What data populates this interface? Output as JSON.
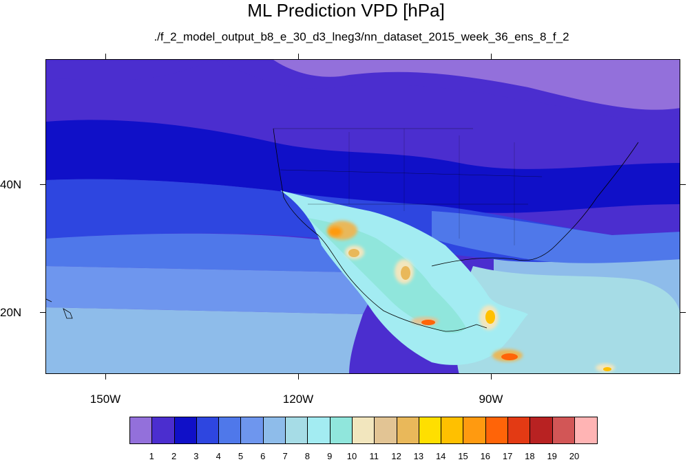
{
  "title": "ML Prediction VPD [hPa]",
  "subtitle": "./f_2_model_output_b8_e_30_d3_lneg3/nn_dataset_2015_week_36_ens_8_f_2",
  "map": {
    "lon_labels": [
      "150W",
      "120W",
      "90W"
    ],
    "lat_labels": [
      "40N",
      "20N"
    ],
    "extent": {
      "lon_min": -160,
      "lon_max": -60,
      "lat_min": 10,
      "lat_max": 60
    }
  },
  "colorbar": {
    "levels": [
      "1",
      "2",
      "3",
      "4",
      "5",
      "6",
      "7",
      "8",
      "9",
      "10",
      "11",
      "12",
      "13",
      "14",
      "15",
      "16",
      "17",
      "18",
      "19",
      "20"
    ],
    "colors": [
      "#9370db",
      "#4b2ecf",
      "#1010c8",
      "#2e46e0",
      "#4f78ea",
      "#6e96ee",
      "#8ebcea",
      "#a6dce6",
      "#a3ecf2",
      "#90e6dc",
      "#f2e6be",
      "#e2c494",
      "#e9b85a",
      "#ffdf00",
      "#ffc000",
      "#ff9a10",
      "#ff6408",
      "#e33a14",
      "#b82222",
      "#d25656",
      "#ffb4b4"
    ]
  }
}
